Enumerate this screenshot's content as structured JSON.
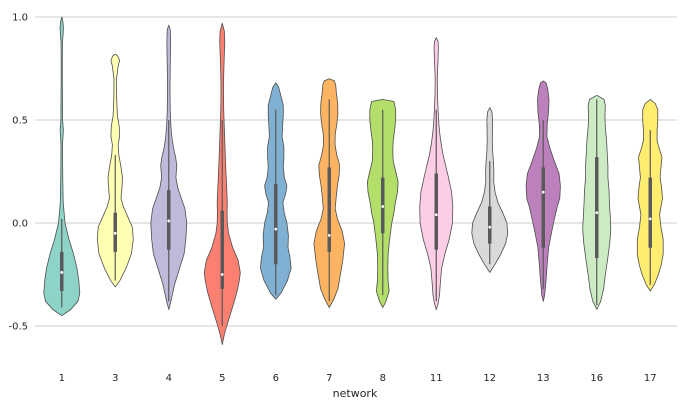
{
  "chart_data": {
    "type": "violin",
    "title": "",
    "xlabel": "network",
    "ylabel": "",
    "ylim": [
      -0.7,
      1.0
    ],
    "yticks": [
      -0.5,
      0.0,
      0.5,
      1.0
    ],
    "ytick_labels": [
      "-0.5",
      "0.0",
      "0.5",
      "1.0"
    ],
    "grid": true,
    "categories": [
      "1",
      "3",
      "4",
      "5",
      "6",
      "7",
      "8",
      "11",
      "12",
      "13",
      "16",
      "17"
    ],
    "colors": [
      "#8dd3c7",
      "#ffffb3",
      "#bebada",
      "#fb8072",
      "#80b1d3",
      "#fdb462",
      "#b3de69",
      "#fccde5",
      "#d9d9d9",
      "#bc80bd",
      "#ccebc5",
      "#ffed6f"
    ],
    "violins": [
      {
        "network": "1",
        "profile": [
          [
            -0.45,
            0.0
          ],
          [
            -0.42,
            0.5
          ],
          [
            -0.38,
            0.9
          ],
          [
            -0.34,
            1.0
          ],
          [
            -0.28,
            0.95
          ],
          [
            -0.22,
            0.85
          ],
          [
            -0.15,
            0.65
          ],
          [
            -0.08,
            0.4
          ],
          [
            0.0,
            0.18
          ],
          [
            0.1,
            0.08
          ],
          [
            0.2,
            0.06
          ],
          [
            0.3,
            0.05
          ],
          [
            0.38,
            0.04
          ],
          [
            0.42,
            0.07
          ],
          [
            0.45,
            0.09
          ],
          [
            0.5,
            0.05
          ],
          [
            0.6,
            0.04
          ],
          [
            0.7,
            0.03
          ],
          [
            0.8,
            0.03
          ],
          [
            0.88,
            0.04
          ],
          [
            0.92,
            0.08
          ],
          [
            0.95,
            0.09
          ],
          [
            0.98,
            0.06
          ],
          [
            1.0,
            0.0
          ]
        ],
        "q1": -0.33,
        "median": -0.24,
        "q3": -0.14,
        "wlo": -0.41,
        "whi": 0.02
      },
      {
        "network": "3",
        "profile": [
          [
            -0.31,
            0.0
          ],
          [
            -0.28,
            0.25
          ],
          [
            -0.22,
            0.6
          ],
          [
            -0.15,
            0.9
          ],
          [
            -0.08,
            1.0
          ],
          [
            -0.02,
            0.95
          ],
          [
            0.03,
            0.7
          ],
          [
            0.08,
            0.45
          ],
          [
            0.12,
            0.32
          ],
          [
            0.18,
            0.38
          ],
          [
            0.22,
            0.4
          ],
          [
            0.28,
            0.3
          ],
          [
            0.33,
            0.2
          ],
          [
            0.38,
            0.16
          ],
          [
            0.42,
            0.24
          ],
          [
            0.47,
            0.22
          ],
          [
            0.52,
            0.12
          ],
          [
            0.6,
            0.08
          ],
          [
            0.7,
            0.07
          ],
          [
            0.76,
            0.16
          ],
          [
            0.79,
            0.24
          ],
          [
            0.81,
            0.14
          ],
          [
            0.82,
            0.0
          ]
        ],
        "q1": -0.14,
        "median": -0.05,
        "q3": 0.05,
        "wlo": -0.28,
        "whi": 0.33
      },
      {
        "network": "4",
        "profile": [
          [
            -0.42,
            0.0
          ],
          [
            -0.38,
            0.12
          ],
          [
            -0.3,
            0.32
          ],
          [
            -0.22,
            0.6
          ],
          [
            -0.15,
            0.85
          ],
          [
            -0.08,
            0.95
          ],
          [
            0.0,
            1.0
          ],
          [
            0.07,
            0.9
          ],
          [
            0.12,
            0.7
          ],
          [
            0.17,
            0.5
          ],
          [
            0.22,
            0.4
          ],
          [
            0.28,
            0.45
          ],
          [
            0.32,
            0.38
          ],
          [
            0.37,
            0.25
          ],
          [
            0.42,
            0.17
          ],
          [
            0.47,
            0.12
          ],
          [
            0.55,
            0.08
          ],
          [
            0.65,
            0.07
          ],
          [
            0.75,
            0.08
          ],
          [
            0.85,
            0.1
          ],
          [
            0.9,
            0.1
          ],
          [
            0.94,
            0.08
          ],
          [
            0.96,
            0.0
          ]
        ],
        "q1": -0.13,
        "median": 0.01,
        "q3": 0.16,
        "wlo": -0.38,
        "whi": 0.5
      },
      {
        "network": "5",
        "profile": [
          [
            -0.59,
            0.0
          ],
          [
            -0.54,
            0.12
          ],
          [
            -0.47,
            0.35
          ],
          [
            -0.4,
            0.6
          ],
          [
            -0.34,
            0.8
          ],
          [
            -0.28,
            0.95
          ],
          [
            -0.24,
            1.0
          ],
          [
            -0.18,
            0.88
          ],
          [
            -0.12,
            0.58
          ],
          [
            -0.05,
            0.35
          ],
          [
            0.0,
            0.28
          ],
          [
            0.05,
            0.27
          ],
          [
            0.1,
            0.28
          ],
          [
            0.15,
            0.26
          ],
          [
            0.22,
            0.22
          ],
          [
            0.3,
            0.18
          ],
          [
            0.38,
            0.15
          ],
          [
            0.45,
            0.12
          ],
          [
            0.55,
            0.08
          ],
          [
            0.65,
            0.07
          ],
          [
            0.72,
            0.08
          ],
          [
            0.8,
            0.11
          ],
          [
            0.88,
            0.14
          ],
          [
            0.93,
            0.12
          ],
          [
            0.97,
            0.0
          ]
        ],
        "q1": -0.32,
        "median": -0.25,
        "q3": 0.06,
        "wlo": -0.5,
        "whi": 0.5
      },
      {
        "network": "6",
        "profile": [
          [
            -0.37,
            0.0
          ],
          [
            -0.34,
            0.3
          ],
          [
            -0.28,
            0.65
          ],
          [
            -0.22,
            0.85
          ],
          [
            -0.17,
            0.8
          ],
          [
            -0.12,
            0.68
          ],
          [
            -0.06,
            0.7
          ],
          [
            0.0,
            0.62
          ],
          [
            0.05,
            0.47
          ],
          [
            0.1,
            0.4
          ],
          [
            0.14,
            0.55
          ],
          [
            0.18,
            0.62
          ],
          [
            0.22,
            0.48
          ],
          [
            0.27,
            0.42
          ],
          [
            0.32,
            0.45
          ],
          [
            0.37,
            0.45
          ],
          [
            0.42,
            0.35
          ],
          [
            0.47,
            0.38
          ],
          [
            0.52,
            0.42
          ],
          [
            0.57,
            0.42
          ],
          [
            0.62,
            0.28
          ],
          [
            0.66,
            0.16
          ],
          [
            0.68,
            0.0
          ]
        ],
        "q1": -0.2,
        "median": -0.03,
        "q3": 0.19,
        "wlo": -0.35,
        "whi": 0.55
      },
      {
        "network": "7",
        "profile": [
          [
            -0.41,
            0.0
          ],
          [
            -0.37,
            0.25
          ],
          [
            -0.32,
            0.48
          ],
          [
            -0.25,
            0.62
          ],
          [
            -0.18,
            0.75
          ],
          [
            -0.1,
            0.85
          ],
          [
            -0.04,
            0.72
          ],
          [
            0.02,
            0.45
          ],
          [
            0.07,
            0.33
          ],
          [
            0.12,
            0.38
          ],
          [
            0.18,
            0.45
          ],
          [
            0.23,
            0.55
          ],
          [
            0.28,
            0.58
          ],
          [
            0.33,
            0.42
          ],
          [
            0.38,
            0.32
          ],
          [
            0.43,
            0.33
          ],
          [
            0.48,
            0.42
          ],
          [
            0.53,
            0.48
          ],
          [
            0.58,
            0.47
          ],
          [
            0.63,
            0.4
          ],
          [
            0.67,
            0.36
          ],
          [
            0.69,
            0.28
          ],
          [
            0.7,
            0.0
          ]
        ],
        "q1": -0.14,
        "median": -0.06,
        "q3": 0.27,
        "wlo": -0.38,
        "whi": 0.6
      },
      {
        "network": "8",
        "profile": [
          [
            -0.41,
            0.0
          ],
          [
            -0.38,
            0.18
          ],
          [
            -0.33,
            0.35
          ],
          [
            -0.28,
            0.3
          ],
          [
            -0.22,
            0.28
          ],
          [
            -0.15,
            0.3
          ],
          [
            -0.08,
            0.38
          ],
          [
            0.0,
            0.5
          ],
          [
            0.05,
            0.62
          ],
          [
            0.1,
            0.7
          ],
          [
            0.15,
            0.82
          ],
          [
            0.2,
            0.85
          ],
          [
            0.25,
            0.72
          ],
          [
            0.3,
            0.58
          ],
          [
            0.35,
            0.56
          ],
          [
            0.4,
            0.58
          ],
          [
            0.45,
            0.66
          ],
          [
            0.5,
            0.72
          ],
          [
            0.55,
            0.72
          ],
          [
            0.59,
            0.62
          ],
          [
            0.6,
            0.0
          ]
        ],
        "q1": -0.05,
        "median": 0.08,
        "q3": 0.22,
        "wlo": -0.35,
        "whi": 0.55
      },
      {
        "network": "11",
        "profile": [
          [
            -0.42,
            0.0
          ],
          [
            -0.39,
            0.1
          ],
          [
            -0.35,
            0.18
          ],
          [
            -0.3,
            0.22
          ],
          [
            -0.22,
            0.3
          ],
          [
            -0.15,
            0.48
          ],
          [
            -0.08,
            0.72
          ],
          [
            0.0,
            0.9
          ],
          [
            0.08,
            0.92
          ],
          [
            0.15,
            0.85
          ],
          [
            0.22,
            0.68
          ],
          [
            0.28,
            0.52
          ],
          [
            0.33,
            0.38
          ],
          [
            0.38,
            0.28
          ],
          [
            0.43,
            0.2
          ],
          [
            0.48,
            0.15
          ],
          [
            0.55,
            0.1
          ],
          [
            0.62,
            0.07
          ],
          [
            0.7,
            0.06
          ],
          [
            0.75,
            0.08
          ],
          [
            0.8,
            0.1
          ],
          [
            0.85,
            0.12
          ],
          [
            0.88,
            0.1
          ],
          [
            0.9,
            0.0
          ]
        ],
        "q1": -0.13,
        "median": 0.04,
        "q3": 0.24,
        "wlo": -0.38,
        "whi": 0.55
      },
      {
        "network": "12",
        "profile": [
          [
            -0.24,
            0.0
          ],
          [
            -0.2,
            0.3
          ],
          [
            -0.15,
            0.62
          ],
          [
            -0.1,
            0.88
          ],
          [
            -0.05,
            1.0
          ],
          [
            0.0,
            0.95
          ],
          [
            0.05,
            0.72
          ],
          [
            0.1,
            0.45
          ],
          [
            0.15,
            0.3
          ],
          [
            0.2,
            0.22
          ],
          [
            0.25,
            0.23
          ],
          [
            0.3,
            0.2
          ],
          [
            0.35,
            0.16
          ],
          [
            0.4,
            0.14
          ],
          [
            0.45,
            0.15
          ],
          [
            0.5,
            0.16
          ],
          [
            0.54,
            0.12
          ],
          [
            0.56,
            0.0
          ]
        ],
        "q1": -0.1,
        "median": -0.02,
        "q3": 0.08,
        "wlo": -0.2,
        "whi": 0.3
      },
      {
        "network": "13",
        "profile": [
          [
            -0.38,
            0.0
          ],
          [
            -0.35,
            0.08
          ],
          [
            -0.28,
            0.15
          ],
          [
            -0.2,
            0.22
          ],
          [
            -0.12,
            0.3
          ],
          [
            -0.05,
            0.45
          ],
          [
            0.02,
            0.62
          ],
          [
            0.08,
            0.78
          ],
          [
            0.12,
            0.92
          ],
          [
            0.18,
            0.95
          ],
          [
            0.24,
            0.88
          ],
          [
            0.3,
            0.62
          ],
          [
            0.36,
            0.38
          ],
          [
            0.42,
            0.2
          ],
          [
            0.48,
            0.22
          ],
          [
            0.54,
            0.3
          ],
          [
            0.6,
            0.32
          ],
          [
            0.65,
            0.25
          ],
          [
            0.68,
            0.16
          ],
          [
            0.69,
            0.0
          ]
        ],
        "q1": -0.12,
        "median": 0.15,
        "q3": 0.27,
        "wlo": -0.32,
        "whi": 0.5
      },
      {
        "network": "16",
        "profile": [
          [
            -0.42,
            0.0
          ],
          [
            -0.38,
            0.22
          ],
          [
            -0.32,
            0.38
          ],
          [
            -0.25,
            0.48
          ],
          [
            -0.18,
            0.6
          ],
          [
            -0.1,
            0.72
          ],
          [
            -0.03,
            0.78
          ],
          [
            0.03,
            0.75
          ],
          [
            0.1,
            0.7
          ],
          [
            0.16,
            0.68
          ],
          [
            0.22,
            0.62
          ],
          [
            0.28,
            0.62
          ],
          [
            0.34,
            0.58
          ],
          [
            0.4,
            0.55
          ],
          [
            0.46,
            0.48
          ],
          [
            0.52,
            0.45
          ],
          [
            0.57,
            0.48
          ],
          [
            0.6,
            0.4
          ],
          [
            0.62,
            0.0
          ]
        ],
        "q1": -0.17,
        "median": 0.05,
        "q3": 0.32,
        "wlo": -0.4,
        "whi": 0.6
      },
      {
        "network": "17",
        "profile": [
          [
            -0.33,
            0.0
          ],
          [
            -0.3,
            0.22
          ],
          [
            -0.25,
            0.45
          ],
          [
            -0.2,
            0.62
          ],
          [
            -0.15,
            0.72
          ],
          [
            -0.08,
            0.72
          ],
          [
            -0.02,
            0.6
          ],
          [
            0.04,
            0.52
          ],
          [
            0.08,
            0.6
          ],
          [
            0.12,
            0.68
          ],
          [
            0.18,
            0.62
          ],
          [
            0.22,
            0.55
          ],
          [
            0.27,
            0.6
          ],
          [
            0.32,
            0.65
          ],
          [
            0.36,
            0.5
          ],
          [
            0.4,
            0.38
          ],
          [
            0.45,
            0.38
          ],
          [
            0.5,
            0.42
          ],
          [
            0.55,
            0.42
          ],
          [
            0.58,
            0.28
          ],
          [
            0.6,
            0.0
          ]
        ],
        "q1": -0.12,
        "median": 0.02,
        "q3": 0.22,
        "wlo": -0.3,
        "whi": 0.45
      }
    ]
  }
}
